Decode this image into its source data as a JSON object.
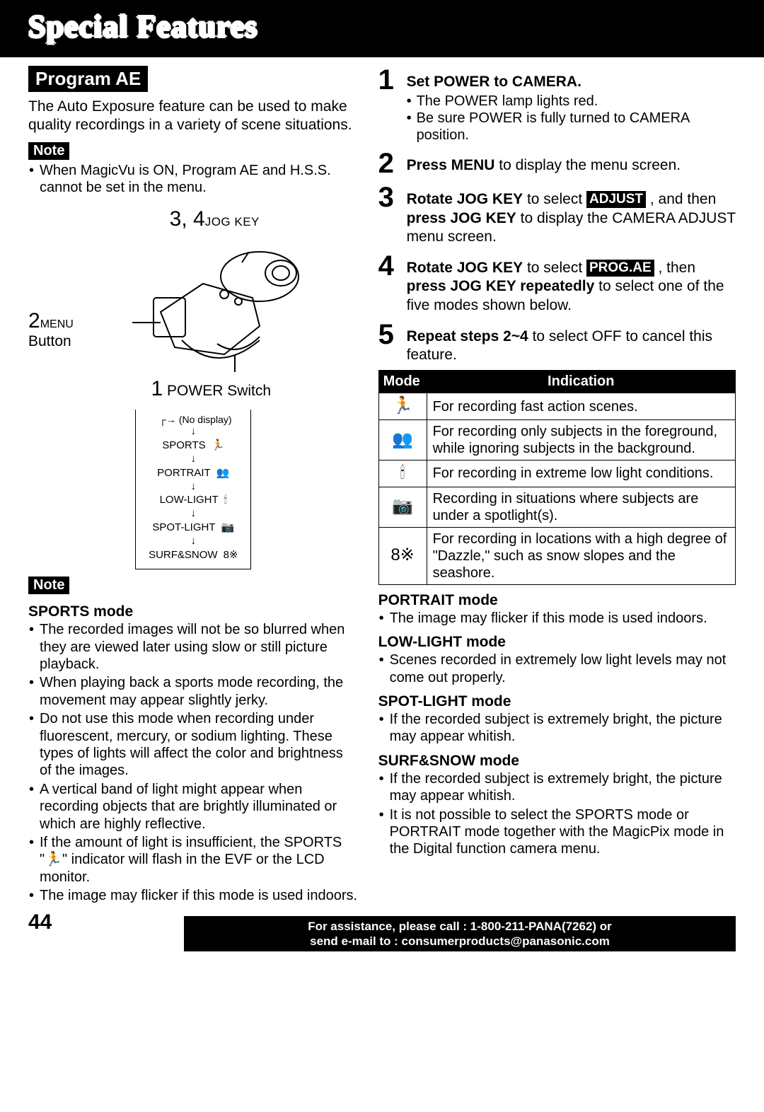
{
  "header": {
    "title": "Special Features"
  },
  "left": {
    "section_title": "Program AE",
    "intro": "The Auto Exposure feature can be used to make quality recordings in a variety of scene situations.",
    "note1_label": "Note",
    "note1_bullets": [
      "When MagicVu is ON, Program AE and H.S.S. cannot be set in the menu."
    ],
    "diagram": {
      "jog_label_num": "3, 4",
      "jog_label_text": "JOG KEY",
      "menu_label_num": "2",
      "menu_label_text": "MENU",
      "menu_sub": "Button",
      "power_label_num": "1",
      "power_label_text": "POWER Switch",
      "flow_top": "(No display)",
      "flow_rows": [
        {
          "label": "SPORTS",
          "icon": "🏃"
        },
        {
          "label": "PORTRAIT",
          "icon": "👥"
        },
        {
          "label": "LOW-LIGHT",
          "icon": "🕯"
        },
        {
          "label": "SPOT-LIGHT",
          "icon": "📷"
        },
        {
          "label": "SURF&SNOW",
          "icon": "8※"
        }
      ]
    },
    "note2_label": "Note",
    "sports_heading": "SPORTS mode",
    "sports_bullets": [
      "The recorded images will not be so blurred when they are viewed later using slow or still picture playback.",
      "When playing back a sports mode recording, the movement may appear slightly jerky.",
      "Do not use this mode when recording under fluorescent, mercury, or sodium lighting. These types of lights will affect the color and brightness of the images.",
      "A vertical band of light might appear when recording objects that are brightly illuminated or which are highly reflective.",
      "If the amount of light is insufficient, the SPORTS \"🏃\" indicator will flash in the EVF or the LCD monitor.",
      "The image may flicker if this mode is used indoors."
    ]
  },
  "right": {
    "steps": [
      {
        "n": "1",
        "html": "<b>Set POWER to CAMERA.</b>",
        "subs": [
          "The POWER lamp lights red.",
          "Be sure POWER is fully turned to CAMERA position."
        ]
      },
      {
        "n": "2",
        "html": "<b>Press MENU</b> to display the menu screen."
      },
      {
        "n": "3",
        "html": "<b>Rotate JOG KEY</b> to select <span class=\"inline-black\">ADJUST</span> , and then <b>press JOG KEY</b> to display the CAMERA ADJUST menu screen."
      },
      {
        "n": "4",
        "html": "<b>Rotate JOG KEY</b> to select <span class=\"inline-black\">PROG.AE</span> , then <b>press JOG KEY repeatedly</b> to select one of the five modes shown below."
      },
      {
        "n": "5",
        "html": "<b>Repeat steps 2~4</b> to select OFF to cancel this feature."
      }
    ],
    "table": {
      "headers": [
        "Mode",
        "Indication"
      ],
      "rows": [
        {
          "icon": "🏃",
          "text": "For recording fast action scenes."
        },
        {
          "icon": "👥",
          "text": "For recording only subjects in the foreground, while ignoring subjects in the background."
        },
        {
          "icon": "🕯",
          "text": "For recording in extreme low light conditions."
        },
        {
          "icon": "📷",
          "text": "Recording in situations where subjects are under a spotlight(s)."
        },
        {
          "icon": "8※",
          "text": "For recording in locations with a high degree of \"Dazzle,\" such as snow slopes and the seashore."
        }
      ]
    },
    "mode_sections": [
      {
        "heading": "PORTRAIT mode",
        "bullets": [
          "The image may flicker if this mode is used indoors."
        ]
      },
      {
        "heading": "LOW-LIGHT mode",
        "bullets": [
          "Scenes recorded in extremely low light levels may not come out properly."
        ]
      },
      {
        "heading": "SPOT-LIGHT mode",
        "bullets": [
          "If the recorded subject is extremely bright, the picture may appear whitish."
        ]
      },
      {
        "heading": "SURF&SNOW mode",
        "bullets": [
          "If the recorded subject is extremely bright, the picture may appear whitish.",
          "It is not possible to select the SPORTS mode or PORTRAIT mode together with the MagicPix mode in the Digital function camera menu."
        ]
      }
    ]
  },
  "footer": {
    "page": "44",
    "line1": "For assistance, please call : 1-800-211-PANA(7262) or",
    "line2": "send e-mail to : consumerproducts@panasonic.com"
  }
}
